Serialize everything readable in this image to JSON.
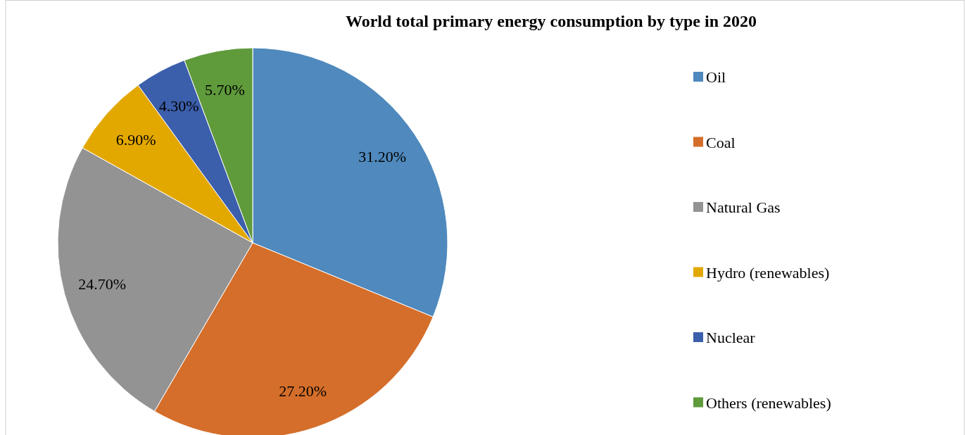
{
  "chart_data": {
    "type": "pie",
    "title": "World total primary energy consumption by type in 2020",
    "categories": [
      "Oil",
      "Coal",
      "Natural Gas",
      "Hydro (renewables)",
      "Nuclear",
      "Others (renewables)"
    ],
    "values": [
      31.2,
      27.2,
      24.7,
      6.9,
      4.3,
      5.7
    ],
    "value_labels": [
      "31.20%",
      "27.20%",
      "24.70%",
      "6.90%",
      "4.30%",
      "5.70%"
    ],
    "colors": [
      "#4f89bd",
      "#d46e2a",
      "#939393",
      "#e3a800",
      "#3c5fac",
      "#5f9a3b"
    ],
    "legend": "right"
  }
}
